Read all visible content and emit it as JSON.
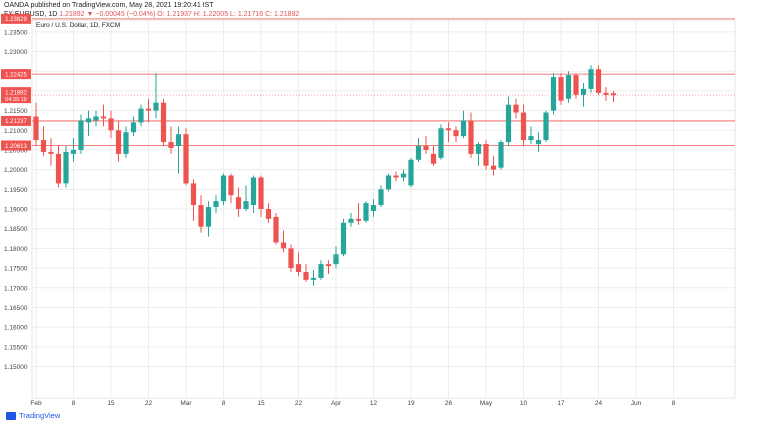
{
  "header": {
    "published_line": "OANDA published on TradingView.com, May 28, 2021 19:20:41 IST",
    "symbol": "FX:EURUSD, 1D",
    "change": "1.21892 ▼ −0.00045 (−0.04%)",
    "ohlc": "O: 1.21937 H: 1.22005 L: 1.21716 C: 1.21892"
  },
  "chart_data": {
    "type": "candlestick",
    "title": "Euro / U.S. Dollar, 1D, FXCM",
    "ylim": [
      1.142,
      1.238
    ],
    "y_ticks": [
      "1.23500",
      "1.23000",
      "1.22500",
      "1.22000",
      "1.21500",
      "1.21000",
      "1.20500",
      "1.20000",
      "1.19500",
      "1.19000",
      "1.18500",
      "1.18000",
      "1.17500",
      "1.17000",
      "1.16500",
      "1.16000",
      "1.15500",
      "1.15000"
    ],
    "x_ticks": [
      "Feb",
      "8",
      "15",
      "22",
      "Mar",
      "8",
      "15",
      "22",
      "Apr",
      "12",
      "19",
      "26",
      "May",
      "10",
      "17",
      "24",
      "Jun",
      "8"
    ],
    "up_color": "#26a69a",
    "down_color": "#ef5350",
    "horizontal_levels": [
      {
        "value": 1.23829,
        "label": "1.23829"
      },
      {
        "value": 1.22425,
        "label": "1.22425"
      },
      {
        "value": 1.21237,
        "label": "1.21237"
      },
      {
        "value": 1.20613,
        "label": "1.20613"
      }
    ],
    "price_tag": {
      "value": 1.21892,
      "label": "1.21892",
      "countdown": "04:39:19"
    },
    "candles": [
      {
        "o": 1.2135,
        "h": 1.217,
        "l": 1.206,
        "c": 1.2075
      },
      {
        "o": 1.2075,
        "h": 1.211,
        "l": 1.2035,
        "c": 1.2045
      },
      {
        "o": 1.2045,
        "h": 1.208,
        "l": 1.201,
        "c": 1.204
      },
      {
        "o": 1.204,
        "h": 1.206,
        "l": 1.1955,
        "c": 1.1965
      },
      {
        "o": 1.1965,
        "h": 1.206,
        "l": 1.1955,
        "c": 1.2045
      },
      {
        "o": 1.204,
        "h": 1.208,
        "l": 1.202,
        "c": 1.205
      },
      {
        "o": 1.205,
        "h": 1.214,
        "l": 1.204,
        "c": 1.2125
      },
      {
        "o": 1.212,
        "h": 1.215,
        "l": 1.2085,
        "c": 1.213
      },
      {
        "o": 1.2125,
        "h": 1.215,
        "l": 1.211,
        "c": 1.2135
      },
      {
        "o": 1.2135,
        "h": 1.2165,
        "l": 1.211,
        "c": 1.213
      },
      {
        "o": 1.213,
        "h": 1.215,
        "l": 1.208,
        "c": 1.21
      },
      {
        "o": 1.21,
        "h": 1.2125,
        "l": 1.202,
        "c": 1.204
      },
      {
        "o": 1.204,
        "h": 1.211,
        "l": 1.203,
        "c": 1.2095
      },
      {
        "o": 1.2095,
        "h": 1.2135,
        "l": 1.2085,
        "c": 1.212
      },
      {
        "o": 1.212,
        "h": 1.2165,
        "l": 1.211,
        "c": 1.2155
      },
      {
        "o": 1.2155,
        "h": 1.218,
        "l": 1.212,
        "c": 1.215
      },
      {
        "o": 1.215,
        "h": 1.2245,
        "l": 1.213,
        "c": 1.217
      },
      {
        "o": 1.217,
        "h": 1.218,
        "l": 1.206,
        "c": 1.207
      },
      {
        "o": 1.207,
        "h": 1.211,
        "l": 1.204,
        "c": 1.2055
      },
      {
        "o": 1.206,
        "h": 1.211,
        "l": 1.199,
        "c": 1.209
      },
      {
        "o": 1.209,
        "h": 1.2105,
        "l": 1.196,
        "c": 1.1965
      },
      {
        "o": 1.1965,
        "h": 1.1975,
        "l": 1.187,
        "c": 1.191
      },
      {
        "o": 1.191,
        "h": 1.1935,
        "l": 1.184,
        "c": 1.1855
      },
      {
        "o": 1.1855,
        "h": 1.192,
        "l": 1.183,
        "c": 1.1905
      },
      {
        "o": 1.1905,
        "h": 1.1935,
        "l": 1.189,
        "c": 1.192
      },
      {
        "o": 1.192,
        "h": 1.199,
        "l": 1.191,
        "c": 1.1985
      },
      {
        "o": 1.1985,
        "h": 1.199,
        "l": 1.1915,
        "c": 1.1935
      },
      {
        "o": 1.193,
        "h": 1.1955,
        "l": 1.188,
        "c": 1.19
      },
      {
        "o": 1.19,
        "h": 1.196,
        "l": 1.1895,
        "c": 1.192
      },
      {
        "o": 1.191,
        "h": 1.1985,
        "l": 1.189,
        "c": 1.198
      },
      {
        "o": 1.198,
        "h": 1.1985,
        "l": 1.188,
        "c": 1.19
      },
      {
        "o": 1.19,
        "h": 1.1915,
        "l": 1.1865,
        "c": 1.1875
      },
      {
        "o": 1.188,
        "h": 1.189,
        "l": 1.181,
        "c": 1.1815
      },
      {
        "o": 1.1815,
        "h": 1.1845,
        "l": 1.179,
        "c": 1.18
      },
      {
        "o": 1.18,
        "h": 1.181,
        "l": 1.174,
        "c": 1.175
      },
      {
        "o": 1.176,
        "h": 1.179,
        "l": 1.173,
        "c": 1.174
      },
      {
        "o": 1.174,
        "h": 1.176,
        "l": 1.1715,
        "c": 1.172
      },
      {
        "o": 1.172,
        "h": 1.1745,
        "l": 1.1705,
        "c": 1.1725
      },
      {
        "o": 1.1725,
        "h": 1.177,
        "l": 1.172,
        "c": 1.176
      },
      {
        "o": 1.176,
        "h": 1.177,
        "l": 1.1735,
        "c": 1.1755
      },
      {
        "o": 1.176,
        "h": 1.1805,
        "l": 1.175,
        "c": 1.1785
      },
      {
        "o": 1.1785,
        "h": 1.1875,
        "l": 1.178,
        "c": 1.1865
      },
      {
        "o": 1.1865,
        "h": 1.189,
        "l": 1.1855,
        "c": 1.1875
      },
      {
        "o": 1.1875,
        "h": 1.1915,
        "l": 1.186,
        "c": 1.187
      },
      {
        "o": 1.187,
        "h": 1.192,
        "l": 1.1865,
        "c": 1.1915
      },
      {
        "o": 1.1895,
        "h": 1.1925,
        "l": 1.188,
        "c": 1.191
      },
      {
        "o": 1.191,
        "h": 1.196,
        "l": 1.1905,
        "c": 1.195
      },
      {
        "o": 1.195,
        "h": 1.199,
        "l": 1.1945,
        "c": 1.1985
      },
      {
        "o": 1.1985,
        "h": 1.1995,
        "l": 1.197,
        "c": 1.198
      },
      {
        "o": 1.198,
        "h": 1.2,
        "l": 1.197,
        "c": 1.199
      },
      {
        "o": 1.196,
        "h": 1.203,
        "l": 1.1955,
        "c": 1.2025
      },
      {
        "o": 1.2025,
        "h": 1.208,
        "l": 1.202,
        "c": 1.206
      },
      {
        "o": 1.206,
        "h": 1.2085,
        "l": 1.204,
        "c": 1.205
      },
      {
        "o": 1.204,
        "h": 1.206,
        "l": 1.201,
        "c": 1.2015
      },
      {
        "o": 1.203,
        "h": 1.2115,
        "l": 1.2025,
        "c": 1.2105
      },
      {
        "o": 1.2105,
        "h": 1.212,
        "l": 1.207,
        "c": 1.21
      },
      {
        "o": 1.21,
        "h": 1.211,
        "l": 1.207,
        "c": 1.2085
      },
      {
        "o": 1.2085,
        "h": 1.215,
        "l": 1.208,
        "c": 1.2125
      },
      {
        "o": 1.2125,
        "h": 1.2145,
        "l": 1.203,
        "c": 1.204
      },
      {
        "o": 1.204,
        "h": 1.207,
        "l": 1.201,
        "c": 1.2065
      },
      {
        "o": 1.2065,
        "h": 1.2075,
        "l": 1.2,
        "c": 1.201
      },
      {
        "o": 1.201,
        "h": 1.2035,
        "l": 1.1985,
        "c": 1.2
      },
      {
        "o": 1.2005,
        "h": 1.2075,
        "l": 1.2,
        "c": 1.207
      },
      {
        "o": 1.207,
        "h": 1.2185,
        "l": 1.206,
        "c": 1.2165
      },
      {
        "o": 1.2165,
        "h": 1.218,
        "l": 1.213,
        "c": 1.2145
      },
      {
        "o": 1.2145,
        "h": 1.2165,
        "l": 1.206,
        "c": 1.2075
      },
      {
        "o": 1.2075,
        "h": 1.211,
        "l": 1.2065,
        "c": 1.2085
      },
      {
        "o": 1.2065,
        "h": 1.2095,
        "l": 1.2045,
        "c": 1.2075
      },
      {
        "o": 1.2075,
        "h": 1.215,
        "l": 1.207,
        "c": 1.2145
      },
      {
        "o": 1.215,
        "h": 1.2245,
        "l": 1.214,
        "c": 1.2235
      },
      {
        "o": 1.2235,
        "h": 1.2245,
        "l": 1.2165,
        "c": 1.2175
      },
      {
        "o": 1.218,
        "h": 1.225,
        "l": 1.217,
        "c": 1.224
      },
      {
        "o": 1.224,
        "h": 1.2245,
        "l": 1.218,
        "c": 1.219
      },
      {
        "o": 1.219,
        "h": 1.222,
        "l": 1.216,
        "c": 1.2205
      },
      {
        "o": 1.2205,
        "h": 1.2265,
        "l": 1.2195,
        "c": 1.2255
      },
      {
        "o": 1.2255,
        "h": 1.2265,
        "l": 1.219,
        "c": 1.2195
      },
      {
        "o": 1.2195,
        "h": 1.221,
        "l": 1.2175,
        "c": 1.219
      },
      {
        "o": 1.2194,
        "h": 1.22,
        "l": 1.2172,
        "c": 1.2189
      }
    ]
  }
}
